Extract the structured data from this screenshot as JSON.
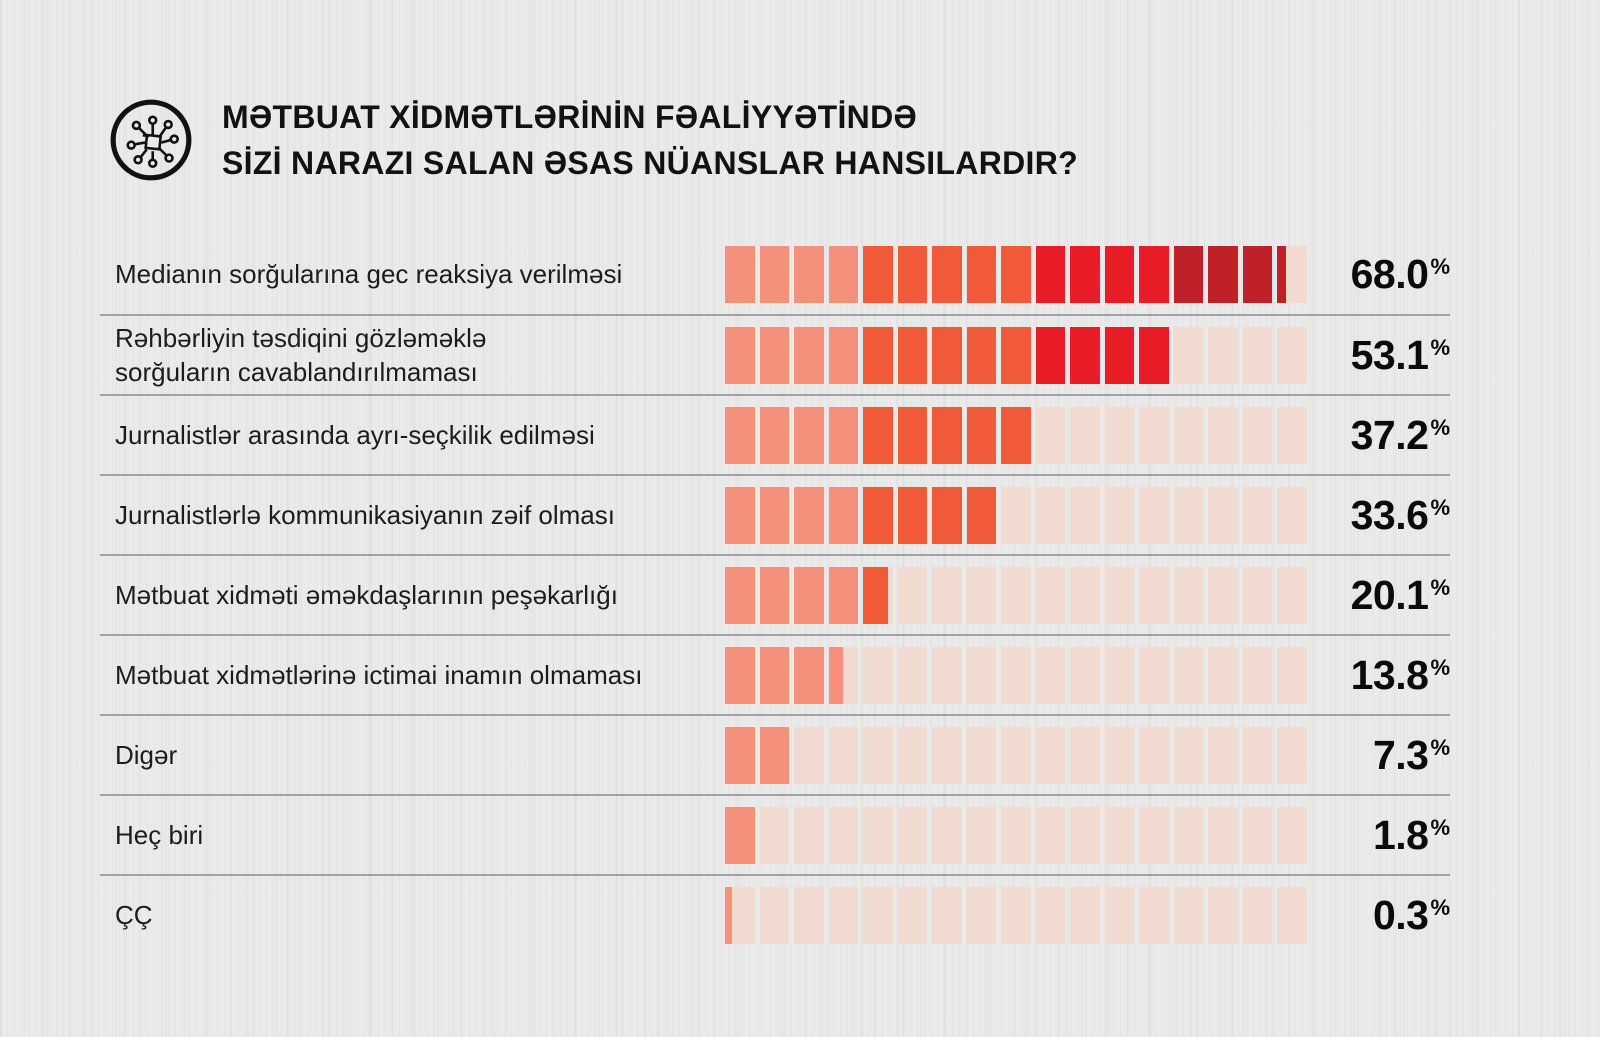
{
  "header": {
    "title_line1": "MƏTBUAT XİDMƏTLƏRİNİN FƏALİYYƏTİNDƏ",
    "title_line2": "SİZİ NARAZI SALAN ƏSAS NÜANSLAR HANSILARDIR?",
    "icon": "digital-network-icon"
  },
  "chart_data": {
    "type": "bar",
    "orientation": "horizontal",
    "title": "MƏTBUAT XİDMƏTLƏRİNİN FƏALİYYƏTİNDƏ SİZİ NARAZI SALAN ƏSAS NÜANSLAR HANSILARDIR?",
    "unit": "%",
    "categories": [
      "Medianın sorğularına gec reaksiya verilməsi",
      "Rəhbərliyin təsdiqini gözləməklə\nsorğuların cavablandırılmaması",
      "Jurnalistlər arasında ayrı-seçkilik edilməsi",
      "Jurnalistlərlə kommunikasiyanın zəif olması",
      "Mətbuat xidməti əməkdaşlarının peşəkarlığı",
      "Mətbuat xidmətlərinə ictimai inamın olmaması",
      "Digər",
      "Heç biri",
      "ÇÇ"
    ],
    "values": [
      68.0,
      53.1,
      37.2,
      33.6,
      20.1,
      13.8,
      7.3,
      1.8,
      0.3
    ],
    "value_labels": [
      "68.0",
      "53.1",
      "37.2",
      "33.6",
      "20.1",
      "13.8",
      "7.3",
      "1.8",
      "0.3"
    ],
    "segments_total": 17,
    "percent_per_segment": 4.18,
    "filled_segments": [
      16.3,
      13,
      9,
      8,
      4.85,
      3.5,
      2,
      1,
      0.25
    ],
    "colors": {
      "salmon": "#F5917A",
      "orange": "#F05A38",
      "red": "#E91D28",
      "dark_red": "#BE2128",
      "empty": "#F1DBD1",
      "color_by_segment_index": "0-3:salmon, 4-8:orange, 9-12:red, 13-16:dark_red"
    },
    "grid": false,
    "legend": false,
    "xlim": [
      0,
      71
    ]
  }
}
